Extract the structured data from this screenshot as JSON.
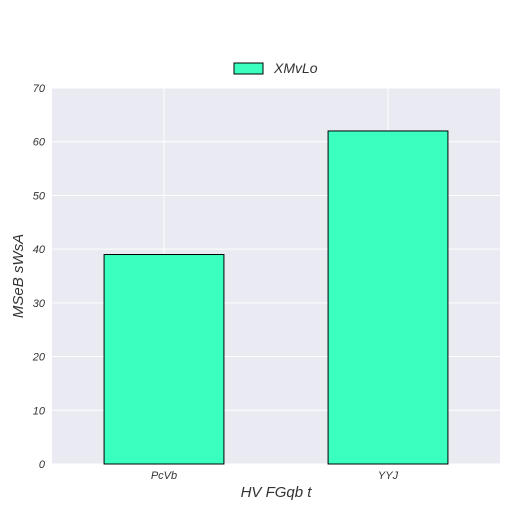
{
  "chart_data": {
    "type": "bar",
    "title": "",
    "categories": [
      "PcVb",
      "YYJ"
    ],
    "series": [
      {
        "name": "XMvLo",
        "values": [
          39,
          62
        ]
      }
    ],
    "xlabel": "HV FGqb t",
    "ylabel": "MSeB sWsA",
    "ylim": [
      0,
      70
    ],
    "yticks": [
      0,
      10,
      20,
      30,
      40,
      50,
      60,
      70
    ],
    "grid": true,
    "legend_position": "top-center",
    "colors": {
      "bar": "#3affbe",
      "bar_edge": "#000000",
      "plot_background": "#eaeaf2",
      "grid": "#ffffff"
    }
  }
}
